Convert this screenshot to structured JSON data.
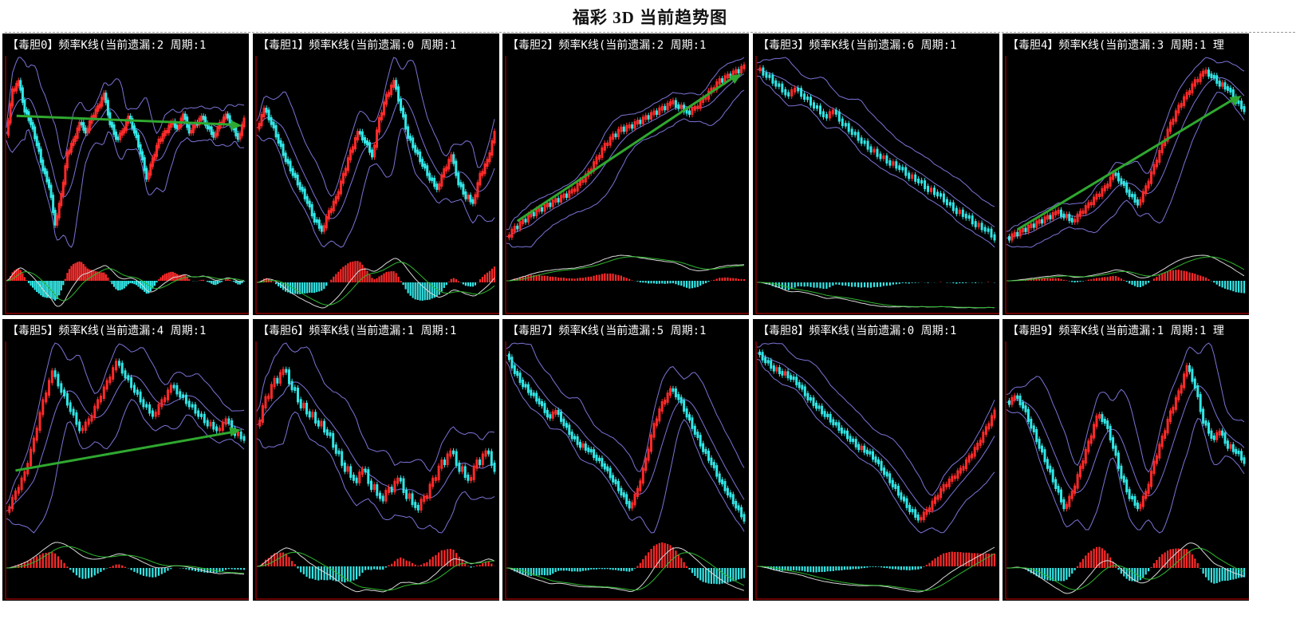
{
  "page": {
    "title": "福彩 3D 当前趋势图"
  },
  "colors": {
    "background": "#000000",
    "up_candle": "#ff2a2a",
    "down_candle": "#33e6e6",
    "bollinger": "#7b73d6",
    "macd_fast": "#d9d9d9",
    "macd_slow": "#2fb82f",
    "trend_arrow": "#2fa82f",
    "axis": "#d40000"
  },
  "chart_data": [
    {
      "type": "candlestick",
      "title": "【毒胆0】频率K线(当前遗漏:2 周期:1",
      "y": [
        47,
        68,
        72,
        58,
        52,
        42,
        30,
        22,
        4,
        18,
        38,
        44,
        52,
        48,
        55,
        60,
        66,
        52,
        45,
        48,
        55,
        48,
        38,
        26,
        35,
        44,
        48,
        52,
        50,
        56,
        48,
        52,
        55,
        50,
        46,
        52,
        56,
        50,
        45,
        54
      ],
      "arrow": true
    },
    {
      "type": "candlestick",
      "title": "【毒胆1】频率K线(当前遗漏:0 周期:1",
      "y": [
        54,
        62,
        56,
        48,
        40,
        34,
        28,
        22,
        14,
        10,
        18,
        24,
        34,
        44,
        52,
        48,
        42,
        58,
        68,
        74,
        62,
        50,
        44,
        38,
        32,
        28,
        36,
        42,
        30,
        24,
        22,
        34,
        40,
        52
      ],
      "arrow": false
    },
    {
      "type": "candlestick",
      "title": "【毒胆2】频率K线(当前遗漏:2 周期:1",
      "y": [
        8,
        12,
        15,
        18,
        20,
        22,
        24,
        26,
        28,
        32,
        36,
        42,
        48,
        52,
        55,
        56,
        58,
        60,
        62,
        64,
        66,
        64,
        62,
        64,
        68,
        72,
        76,
        78,
        80,
        82
      ],
      "arrow": true
    },
    {
      "type": "candlestick",
      "title": "【毒胆3】频率K线(当前遗漏:6 周期:1",
      "y": [
        95,
        92,
        88,
        84,
        86,
        82,
        78,
        74,
        76,
        70,
        66,
        62,
        58,
        55,
        52,
        50,
        46,
        44,
        40,
        38,
        34,
        30,
        28,
        24,
        22,
        18
      ],
      "arrow": false
    },
    {
      "type": "candlestick",
      "title": "【毒胆4】频率K线(当前遗漏:3 周期:1 理",
      "y": [
        10,
        12,
        14,
        16,
        18,
        20,
        22,
        20,
        18,
        22,
        26,
        30,
        34,
        40,
        36,
        30,
        26,
        34,
        44,
        54,
        64,
        72,
        78,
        84,
        88,
        86,
        82,
        80,
        74,
        70
      ],
      "arrow": true
    },
    {
      "type": "candlestick",
      "title": "【毒胆5】频率K线(当前遗漏:4 周期:1",
      "y": [
        10,
        18,
        26,
        40,
        56,
        68,
        60,
        52,
        44,
        48,
        56,
        64,
        72,
        66,
        60,
        54,
        50,
        56,
        62,
        58,
        54,
        50,
        46,
        44,
        48,
        42,
        40
      ],
      "arrow": true
    },
    {
      "type": "candlestick",
      "title": "【毒胆6】频率K线(当前遗漏:1 周期:1",
      "y": [
        68,
        74,
        78,
        80,
        76,
        72,
        70,
        68,
        66,
        62,
        58,
        56,
        58,
        54,
        52,
        54,
        56,
        52,
        50,
        52,
        56,
        60,
        62,
        58,
        56,
        60,
        62,
        58
      ],
      "arrow": false
    },
    {
      "type": "candlestick",
      "title": "【毒胆7】频率K线(当前遗漏:5 周期:1",
      "y": [
        88,
        80,
        74,
        70,
        66,
        60,
        62,
        56,
        50,
        46,
        44,
        40,
        36,
        30,
        24,
        18,
        26,
        40,
        56,
        66,
        72,
        68,
        60,
        52,
        44,
        38,
        30,
        24,
        18,
        12
      ],
      "arrow": false
    },
    {
      "type": "candlestick",
      "title": "【毒胆8】频率K线(当前遗漏:0 周期:1",
      "y": [
        92,
        88,
        84,
        82,
        80,
        76,
        70,
        66,
        62,
        58,
        54,
        50,
        46,
        44,
        40,
        34,
        28,
        22,
        16,
        12,
        16,
        22,
        28,
        32,
        36,
        42,
        48,
        56,
        64
      ],
      "arrow": false
    },
    {
      "type": "candlestick",
      "title": "【毒胆9】频率K线(当前遗漏:1 周期:1 理",
      "y": [
        70,
        72,
        68,
        60,
        52,
        44,
        36,
        28,
        34,
        44,
        54,
        64,
        62,
        52,
        40,
        32,
        28,
        34,
        46,
        56,
        66,
        74,
        84,
        76,
        62,
        56,
        58,
        52,
        50,
        46
      ],
      "arrow": false
    }
  ]
}
